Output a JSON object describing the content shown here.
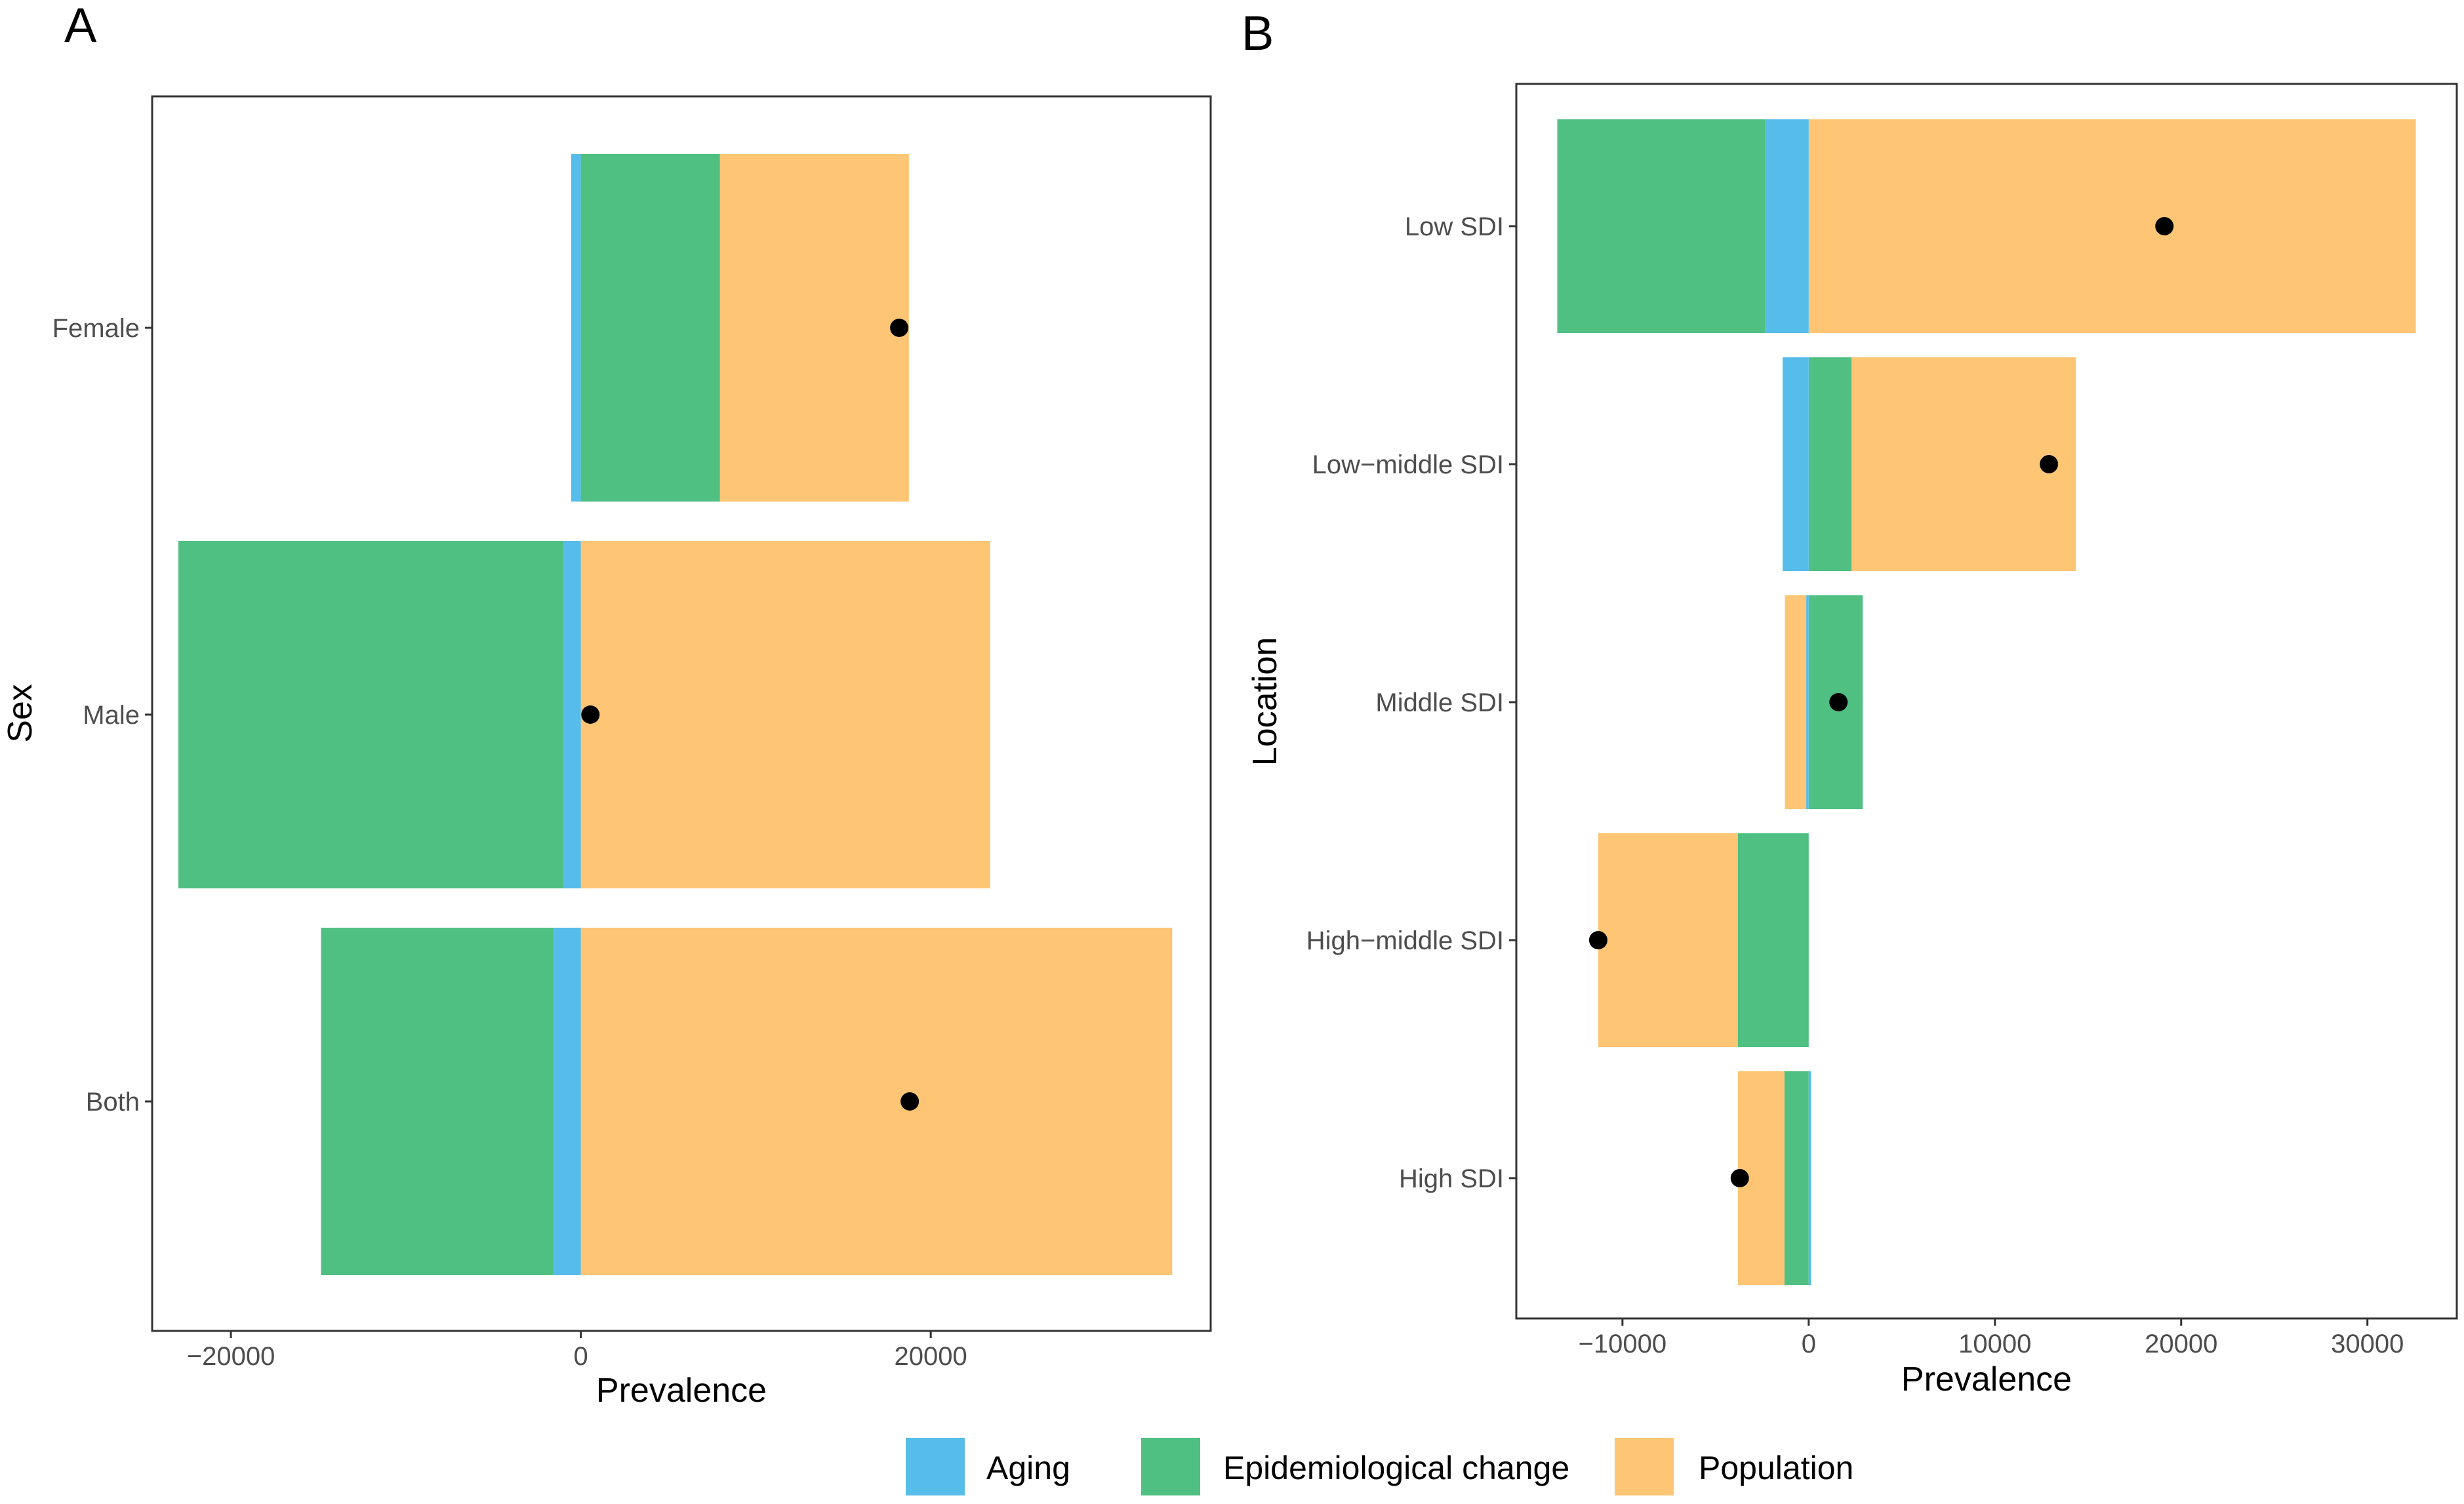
{
  "colors": {
    "Aging": "#56BCE9",
    "Epidemiological change": "#4FBF82",
    "Population": "#FDC574",
    "point": "#000000"
  },
  "legend": {
    "items": [
      "Aging",
      "Epidemiological change",
      "Population"
    ]
  },
  "chart_data": [
    {
      "type": "bar",
      "orientation": "horizontal",
      "stacking": "diverging",
      "panel_label": "A",
      "title": "",
      "xlabel": "Prevalence",
      "ylabel": "Sex",
      "xlim": [
        -24500,
        36000
      ],
      "xticks": [
        -20000,
        0,
        20000
      ],
      "xtick_labels": [
        "−20000",
        "0",
        "20000"
      ],
      "categories": [
        "Female",
        "Male",
        "Both"
      ],
      "series": [
        {
          "name": "Aging",
          "values": [
            -550,
            -1000,
            -1550
          ]
        },
        {
          "name": "Epidemiological change",
          "values": [
            7950,
            -22000,
            -13300
          ]
        },
        {
          "name": "Population",
          "values": [
            10800,
            23400,
            33800
          ]
        }
      ],
      "total_points": [
        18200,
        550,
        18800
      ]
    },
    {
      "type": "bar",
      "orientation": "horizontal",
      "stacking": "diverging",
      "panel_label": "B",
      "title": "",
      "xlabel": "Prevalence",
      "ylabel": "Location",
      "xlim": [
        -15700,
        34800
      ],
      "xticks": [
        -10000,
        0,
        10000,
        20000,
        30000
      ],
      "xtick_labels": [
        "−10000",
        "0",
        "10000",
        "20000",
        "30000"
      ],
      "categories": [
        "Low SDI",
        "Low−middle SDI",
        "Middle SDI",
        "High−middle SDI",
        "High SDI"
      ],
      "series": [
        {
          "name": "Aging",
          "values": [
            -2350,
            -1400,
            -130,
            0,
            130
          ]
        },
        {
          "name": "Epidemiological change",
          "values": [
            -11150,
            2300,
            2900,
            -3800,
            -1300
          ]
        },
        {
          "name": "Population",
          "values": [
            32600,
            12050,
            -1150,
            -7500,
            -2500
          ]
        }
      ],
      "total_points": [
        19100,
        12900,
        1600,
        -11300,
        -3700
      ]
    }
  ]
}
